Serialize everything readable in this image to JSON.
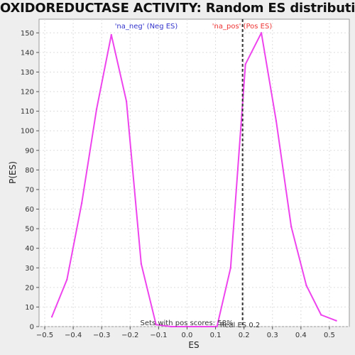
{
  "chart_data": {
    "type": "line",
    "title": "OXIDOREDUCTASE ACTIVITY: Random ES distribution",
    "xlabel": "ES",
    "ylabel": "P(ES)",
    "xlim": [
      -0.52,
      0.57
    ],
    "ylim": [
      0,
      157
    ],
    "x_ticks": [
      -0.5,
      -0.4,
      -0.3,
      -0.2,
      -0.1,
      0.0,
      0.1,
      0.2,
      0.3,
      0.4,
      0.5
    ],
    "x_tick_labels": [
      "−0.5",
      "−0.4",
      "−0.3",
      "−0.2",
      "−0.1",
      "0.0",
      "0.1",
      "0.2",
      "0.3",
      "0.4",
      "0.5"
    ],
    "y_ticks": [
      0,
      10,
      20,
      30,
      40,
      50,
      60,
      70,
      80,
      90,
      100,
      110,
      120,
      130,
      140,
      150
    ],
    "grid": true,
    "series": [
      {
        "color": "#ee44ee",
        "x": [
          -0.475,
          -0.422,
          -0.37,
          -0.318,
          -0.266,
          -0.213,
          -0.161,
          -0.109,
          -0.056,
          0.0,
          0.05,
          0.105,
          0.153,
          0.205,
          0.261,
          0.313,
          0.366,
          0.419,
          0.471,
          0.524
        ],
        "y": [
          5,
          24,
          63,
          111,
          149,
          115,
          32,
          1,
          0,
          0,
          0,
          0,
          30,
          134,
          150,
          105,
          51,
          21,
          6,
          3
        ]
      }
    ],
    "real_es": 0.195,
    "annotations": {
      "neg_label": "'na_neg' (Neg ES)",
      "neg_color": "#3333cc",
      "pos_label": "'na_pos' (Pos ES)",
      "pos_color": "#ee3333",
      "sets_label": "Sets with pos scores: 58%",
      "real_label": "Real ES 0.2"
    },
    "line_color": "#ee44ee",
    "grid_color": "#dddddd",
    "real_line_color": "#333333"
  }
}
